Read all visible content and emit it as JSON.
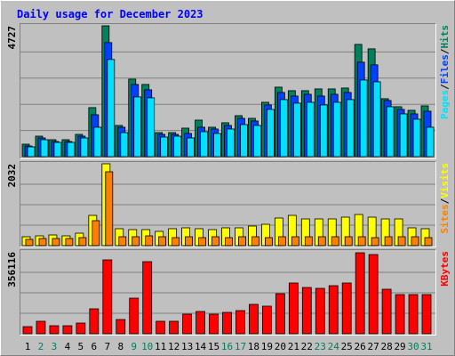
{
  "chart_data": {
    "type": "bar",
    "title": "Daily usage for December 2023",
    "legend_separator": "/",
    "categories": [
      "1",
      "2",
      "3",
      "4",
      "5",
      "6",
      "7",
      "8",
      "9",
      "10",
      "11",
      "12",
      "13",
      "14",
      "15",
      "16",
      "17",
      "18",
      "19",
      "20",
      "21",
      "22",
      "23",
      "24",
      "25",
      "26",
      "27",
      "28",
      "29",
      "30",
      "31"
    ],
    "category_colors": [
      "#000000",
      "#00805c",
      "#00805c",
      "#000000",
      "#000000",
      "#000000",
      "#000000",
      "#000000",
      "#00805c",
      "#00805c",
      "#000000",
      "#000000",
      "#000000",
      "#000000",
      "#000000",
      "#00805c",
      "#00805c",
      "#000000",
      "#000000",
      "#000000",
      "#000000",
      "#000000",
      "#00805c",
      "#00805c",
      "#000000",
      "#000000",
      "#000000",
      "#000000",
      "#000000",
      "#00805c",
      "#00805c"
    ],
    "panels": [
      {
        "ylim": [
          0,
          4727
        ],
        "yticks": [
          4727
        ],
        "series": [
          {
            "name": "Hits",
            "color": "#00805c",
            "values": [
              450,
              740,
              612,
              612,
              805,
              1771,
              4727,
              1127,
              2800,
              2608,
              869,
              869,
              1030,
              1320,
              1063,
              1224,
              1481,
              1384,
              1964,
              2511,
              2383,
              2383,
              2447,
              2447,
              2479,
              4056,
              3895,
              2093,
              1803,
              1674,
              1835
            ]
          },
          {
            "name": "Files",
            "color": "#0040ff",
            "values": [
              386,
              676,
              547,
              547,
              740,
              1513,
              4120,
              1063,
              2608,
              2415,
              805,
              805,
              837,
              1063,
              998,
              1127,
              1384,
              1288,
              1867,
              2318,
              2190,
              2254,
              2190,
              2254,
              2318,
              3413,
              3317,
              2029,
              1706,
              1545,
              1642
            ]
          },
          {
            "name": "Pages",
            "color": "#00e0ff",
            "values": [
              354,
              612,
              515,
              515,
              676,
              1063,
              3510,
              869,
              2157,
              2125,
              708,
              740,
              676,
              901,
              837,
              998,
              1159,
              1127,
              1706,
              2061,
              1932,
              1964,
              1867,
              1964,
              2061,
              2768,
              2704,
              1803,
              1545,
              1352,
              1063
            ]
          }
        ]
      },
      {
        "ylim": [
          0,
          2032
        ],
        "yticks": [
          2032
        ],
        "series": [
          {
            "name": "Visits",
            "color": "#ffff00",
            "values": [
              221,
              243,
              265,
              243,
              309,
              751,
              2032,
              420,
              398,
              398,
              354,
              420,
              442,
              420,
              398,
              442,
              442,
              486,
              530,
              685,
              751,
              663,
              663,
              663,
              707,
              773,
              707,
              663,
              663,
              442,
              420
            ]
          },
          {
            "name": "Sites",
            "color": "#ff8000",
            "values": [
              155,
              177,
              177,
              177,
              199,
              619,
              1833,
              221,
              221,
              243,
              221,
              199,
              221,
              199,
              221,
              199,
              221,
              221,
              199,
              221,
              221,
              221,
              221,
              221,
              221,
              221,
              199,
              221,
              221,
              221,
              199
            ]
          }
        ]
      },
      {
        "ylim": [
          0,
          356116
        ],
        "yticks": [
          356116
        ],
        "series": [
          {
            "name": "KBytes",
            "color": "#ff0000",
            "values": [
              30968,
              54194,
              34839,
              34839,
              46452,
              108388,
              321277,
              61936,
              154840,
              313535,
              54194,
              54194,
              85162,
              96775,
              85162,
              92904,
              100646,
              127743,
              120001,
              174195,
              220647,
              201292,
              197421,
              209034,
              220647,
              352245,
              344503,
              193550,
              170324,
              170324,
              170324
            ]
          }
        ]
      }
    ]
  }
}
